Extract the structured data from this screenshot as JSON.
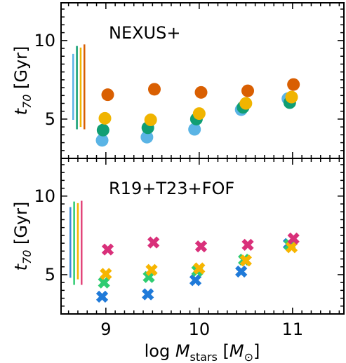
{
  "chart_data": {
    "type": "scatter",
    "xlim": [
      8.52,
      11.55
    ],
    "ylim": [
      2.5,
      12.4
    ],
    "xticks": [
      9,
      10,
      11
    ],
    "yticks": [
      5,
      10
    ],
    "xlabel": "log M_stars [M_⊙]",
    "ylabel": "t_70 [Gyr]",
    "panels": [
      {
        "title": "NEXUS+",
        "marker": "circle",
        "error_bars": [
          {
            "x": 8.65,
            "low": 4.95,
            "high": 9.15,
            "color": "#5ab4e5"
          },
          {
            "x": 8.69,
            "low": 4.35,
            "high": 9.65,
            "color": "#109e73"
          },
          {
            "x": 8.73,
            "low": 4.5,
            "high": 9.55,
            "color": "#f0b400"
          },
          {
            "x": 8.77,
            "low": 4.35,
            "high": 9.75,
            "color": "#d95f02"
          }
        ],
        "series": [
          {
            "color": "#5ab4e5",
            "points": [
              [
                8.96,
                3.65
              ],
              [
                9.44,
                3.85
              ],
              [
                9.95,
                4.35
              ],
              [
                10.45,
                5.6
              ],
              [
                10.95,
                6.3
              ]
            ]
          },
          {
            "color": "#109e73",
            "points": [
              [
                8.97,
                4.3
              ],
              [
                9.45,
                4.45
              ],
              [
                9.97,
                5.0
              ],
              [
                10.47,
                5.75
              ],
              [
                10.97,
                6.05
              ]
            ]
          },
          {
            "color": "#f0b400",
            "points": [
              [
                8.99,
                5.05
              ],
              [
                9.48,
                4.95
              ],
              [
                10.0,
                5.35
              ],
              [
                10.5,
                6.0
              ],
              [
                10.99,
                6.4
              ]
            ]
          },
          {
            "color": "#d95f02",
            "points": [
              [
                9.02,
                6.55
              ],
              [
                9.52,
                6.9
              ],
              [
                10.02,
                6.7
              ],
              [
                10.52,
                6.8
              ],
              [
                11.01,
                7.2
              ]
            ]
          }
        ]
      },
      {
        "title": "R19+T23+FOF",
        "marker": "cross",
        "error_bars": [
          {
            "x": 8.62,
            "low": 4.8,
            "high": 9.3,
            "color": "#3d8ad9"
          },
          {
            "x": 8.66,
            "low": 4.35,
            "high": 9.65,
            "color": "#2ecc71"
          },
          {
            "x": 8.7,
            "low": 4.7,
            "high": 9.55,
            "color": "#f7b500"
          },
          {
            "x": 8.74,
            "low": 4.35,
            "high": 9.7,
            "color": "#e2447a"
          }
        ],
        "series": [
          {
            "color": "#1f7ad9",
            "points": [
              [
                8.96,
                3.6
              ],
              [
                9.45,
                3.75
              ],
              [
                9.96,
                4.65
              ],
              [
                10.45,
                5.2
              ],
              [
                10.96,
                6.95
              ]
            ]
          },
          {
            "color": "#2ecc71",
            "points": [
              [
                8.98,
                4.5
              ],
              [
                9.46,
                4.85
              ],
              [
                9.98,
                5.25
              ],
              [
                10.48,
                5.95
              ],
              [
                10.97,
                6.9
              ]
            ]
          },
          {
            "color": "#f7b500",
            "points": [
              [
                9.0,
                5.05
              ],
              [
                9.49,
                5.3
              ],
              [
                10.0,
                5.4
              ],
              [
                10.5,
                5.9
              ],
              [
                10.99,
                6.75
              ]
            ]
          },
          {
            "color": "#d9307a",
            "points": [
              [
                9.02,
                6.6
              ],
              [
                9.51,
                7.05
              ],
              [
                10.02,
                6.8
              ],
              [
                10.52,
                6.9
              ],
              [
                11.01,
                7.3
              ]
            ]
          }
        ]
      }
    ]
  }
}
